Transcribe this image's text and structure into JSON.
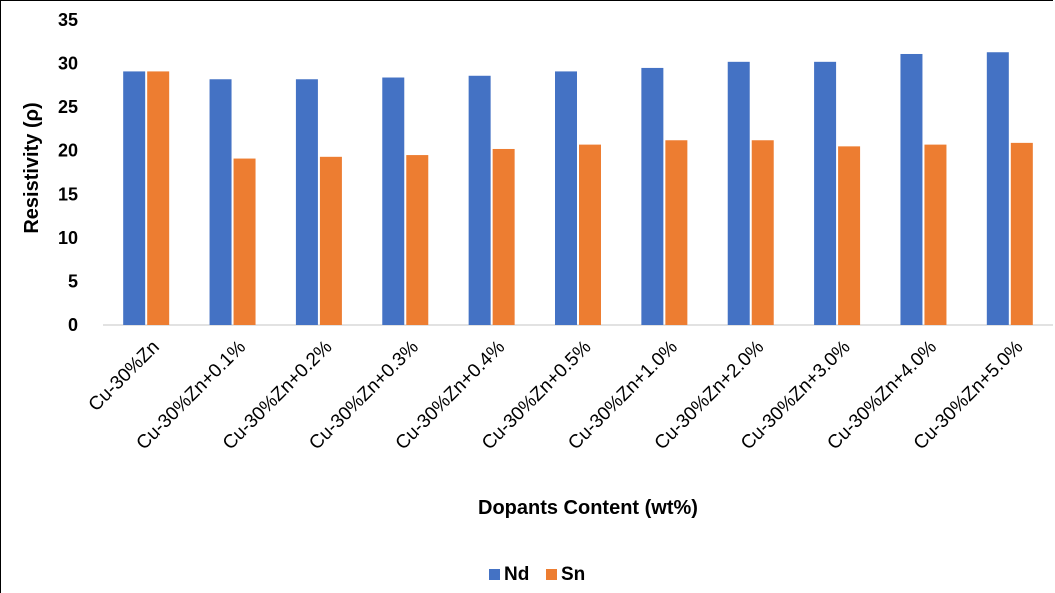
{
  "chart_data": {
    "type": "bar",
    "title": "",
    "xlabel": "Dopants Content (wt%)",
    "ylabel": "Resistivity (ρ)",
    "ylim": [
      0,
      35
    ],
    "yticks": [
      0,
      5,
      10,
      15,
      20,
      25,
      30,
      35
    ],
    "categories": [
      "Cu-30%Zn",
      "Cu-30%Zn+0.1%",
      "Cu-30%Zn+0.2%",
      "Cu-30%Zn+0.3%",
      "Cu-30%Zn+0.4%",
      "Cu-30%Zn+0.5%",
      "Cu-30%Zn+1.0%",
      "Cu-30%Zn+2.0%",
      "Cu-30%Zn+3.0%",
      "Cu-30%Zn+4.0%",
      "Cu-30%Zn+5.0%"
    ],
    "series": [
      {
        "name": "Nd",
        "color": "#4472C4",
        "values": [
          29.1,
          28.2,
          28.2,
          28.4,
          28.6,
          29.1,
          29.5,
          30.2,
          30.2,
          31.1,
          31.3
        ]
      },
      {
        "name": "Sn",
        "color": "#ED7D31",
        "values": [
          29.1,
          19.1,
          19.3,
          19.5,
          20.2,
          20.7,
          21.2,
          21.2,
          20.5,
          20.7,
          20.9
        ]
      }
    ],
    "grid": false,
    "legend_position": "bottom"
  }
}
